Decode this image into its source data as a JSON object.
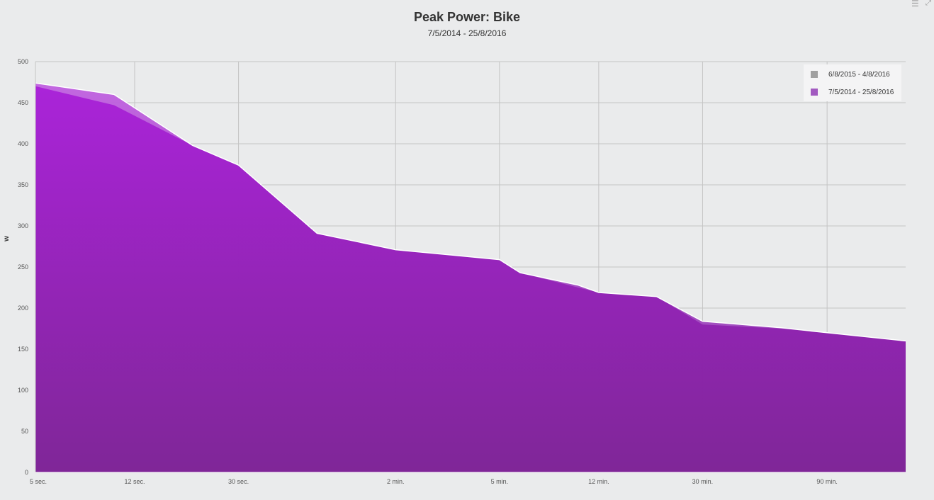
{
  "chart_data": {
    "type": "area",
    "title": "Peak Power: Bike",
    "subtitle": "7/5/2014 - 25/8/2016",
    "ylabel": "w",
    "xlabel": "",
    "ylim": [
      0,
      500
    ],
    "yticks": [
      0,
      50,
      100,
      150,
      200,
      250,
      300,
      350,
      400,
      450,
      500
    ],
    "x_scale": "log",
    "x_unit": "seconds",
    "xlim": [
      5,
      10800
    ],
    "xticks": [
      {
        "value": 5,
        "label": "5 sec."
      },
      {
        "value": 12,
        "label": "12 sec."
      },
      {
        "value": 30,
        "label": "30 sec."
      },
      {
        "value": 120,
        "label": "2 min."
      },
      {
        "value": 300,
        "label": "5 min."
      },
      {
        "value": 720,
        "label": "12 min."
      },
      {
        "value": 1800,
        "label": "30 min."
      },
      {
        "value": 5400,
        "label": "90 min."
      }
    ],
    "grid": true,
    "legend_position": "top-right",
    "series": [
      {
        "name": "6/8/2015 - 4/8/2016",
        "color": "#c56ee0",
        "x": [
          5,
          10,
          20,
          30,
          60,
          120,
          300,
          360,
          600,
          720,
          1200,
          1800,
          3600,
          5400,
          10800
        ],
        "y": [
          474,
          460,
          398,
          374,
          291,
          271,
          259,
          243,
          228,
          219,
          214,
          184,
          176,
          170,
          160
        ]
      },
      {
        "name": "7/5/2014 - 25/8/2016",
        "color": "#a232c6",
        "x": [
          5,
          10,
          20,
          30,
          60,
          120,
          300,
          360,
          600,
          720,
          1200,
          1800,
          3600,
          5400,
          10800
        ],
        "y": [
          470,
          447,
          398,
          374,
          291,
          271,
          259,
          243,
          225,
          219,
          214,
          180,
          175,
          170,
          160
        ]
      }
    ]
  },
  "legend": {
    "items": [
      {
        "label": "6/8/2015 - 4/8/2016",
        "color": "#a0a0a0"
      },
      {
        "label": "7/5/2014 - 25/8/2016",
        "color": "#a25ac0"
      }
    ]
  },
  "toolbar": {
    "menu_icon": "menu-icon",
    "expand_icon": "expand-icon"
  }
}
